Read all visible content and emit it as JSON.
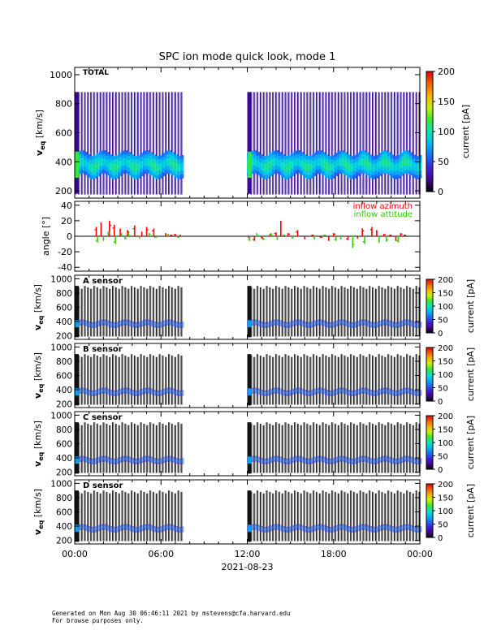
{
  "chart_data": {
    "type": "heatmap",
    "title": "SPC ion mode quick look, mode 1",
    "date_label": "2021-08-23",
    "x_ticks": [
      "00:00",
      "06:00",
      "12:00",
      "18:00",
      "00:00"
    ],
    "panels": [
      {
        "label": "TOTAL",
        "ylabel_main": "v",
        "ylabel_sub": "eq",
        "ylabel_unit": "[km/s]",
        "y_range": [
          150,
          1050
        ],
        "y_ticks": [
          200,
          400,
          600,
          800,
          1000
        ],
        "colorbar_label": "current [pA]",
        "colorbar_range": [
          0,
          200
        ],
        "colorbar_ticks": [
          0,
          50,
          100,
          150,
          200
        ],
        "colormap": "rainbow"
      },
      {
        "label": "A sensor",
        "ylabel_main": "v",
        "ylabel_sub": "eq",
        "ylabel_unit": "[km/s]",
        "y_range": [
          150,
          1050
        ],
        "y_ticks": [
          200,
          400,
          600,
          800,
          1000
        ],
        "colorbar_label": "current [pA]",
        "colorbar_range": [
          0,
          200
        ],
        "colorbar_ticks": [
          0,
          50,
          100,
          150,
          200
        ],
        "colormap": "rainbow"
      },
      {
        "label": "B sensor",
        "ylabel_main": "v",
        "ylabel_sub": "eq",
        "ylabel_unit": "[km/s]",
        "y_range": [
          150,
          1050
        ],
        "y_ticks": [
          200,
          400,
          600,
          800,
          1000
        ],
        "colorbar_label": "current [pA]",
        "colorbar_range": [
          0,
          200
        ],
        "colorbar_ticks": [
          0,
          50,
          100,
          150,
          200
        ],
        "colormap": "rainbow"
      },
      {
        "label": "C sensor",
        "ylabel_main": "v",
        "ylabel_sub": "eq",
        "ylabel_unit": "[km/s]",
        "y_range": [
          150,
          1050
        ],
        "y_ticks": [
          200,
          400,
          600,
          800,
          1000
        ],
        "colorbar_label": "current [pA]",
        "colorbar_range": [
          0,
          200
        ],
        "colorbar_ticks": [
          0,
          50,
          100,
          150,
          200
        ],
        "colormap": "rainbow"
      },
      {
        "label": "D sensor",
        "ylabel_main": "v",
        "ylabel_sub": "eq",
        "ylabel_unit": "[km/s]",
        "y_range": [
          150,
          1050
        ],
        "y_ticks": [
          200,
          400,
          600,
          800,
          1000
        ],
        "colorbar_label": "current [pA]",
        "colorbar_range": [
          0,
          200
        ],
        "colorbar_ticks": [
          0,
          50,
          100,
          150,
          200
        ],
        "colormap": "rainbow"
      }
    ],
    "angle_panel": {
      "ylabel": "angle [°]",
      "y_range": [
        -45,
        45
      ],
      "y_ticks": [
        -40,
        -20,
        0,
        20,
        40
      ],
      "series": [
        {
          "name": "inflow azimuth",
          "color": "#ff0000",
          "points": [
            [
              "01:30",
              12
            ],
            [
              "01:50",
              18
            ],
            [
              "02:25",
              20
            ],
            [
              "02:45",
              15
            ],
            [
              "03:10",
              10
            ],
            [
              "03:40",
              8
            ],
            [
              "04:10",
              14
            ],
            [
              "04:40",
              6
            ],
            [
              "05:00",
              12
            ],
            [
              "05:30",
              10
            ],
            [
              "06:20",
              4
            ],
            [
              "06:40",
              2
            ],
            [
              "07:00",
              3
            ],
            [
              "07:20",
              2
            ],
            [
              "12:05",
              -2
            ],
            [
              "12:30",
              -6
            ],
            [
              "13:00",
              -3
            ],
            [
              "13:35",
              3
            ],
            [
              "14:00",
              5
            ],
            [
              "14:20",
              20
            ],
            [
              "14:50",
              4
            ],
            [
              "15:30",
              8
            ],
            [
              "16:00",
              -4
            ],
            [
              "16:30",
              2
            ],
            [
              "17:10",
              -2
            ],
            [
              "17:40",
              -6
            ],
            [
              "18:00",
              4
            ],
            [
              "19:00",
              -5
            ],
            [
              "19:40",
              -3
            ],
            [
              "20:00",
              10
            ],
            [
              "20:40",
              12
            ],
            [
              "21:00",
              8
            ],
            [
              "21:30",
              3
            ],
            [
              "22:00",
              2
            ],
            [
              "22:20",
              -6
            ],
            [
              "22:40",
              4
            ],
            [
              "23:00",
              2
            ]
          ]
        },
        {
          "name": "inflow attitude",
          "color": "#33cc00",
          "points": [
            [
              "01:35",
              -8
            ],
            [
              "02:00",
              -6
            ],
            [
              "02:20",
              6
            ],
            [
              "02:50",
              -10
            ],
            [
              "03:15",
              4
            ],
            [
              "03:30",
              -4
            ],
            [
              "03:45",
              5
            ],
            [
              "04:30",
              -3
            ],
            [
              "05:10",
              4
            ],
            [
              "05:40",
              -2
            ],
            [
              "06:30",
              3
            ],
            [
              "07:10",
              -2
            ],
            [
              "12:10",
              -6
            ],
            [
              "12:40",
              4
            ],
            [
              "13:05",
              -5
            ],
            [
              "13:40",
              4
            ],
            [
              "14:05",
              -5
            ],
            [
              "14:30",
              2
            ],
            [
              "15:10",
              -3
            ],
            [
              "16:40",
              -4
            ],
            [
              "17:20",
              2
            ],
            [
              "18:10",
              -6
            ],
            [
              "18:30",
              -4
            ],
            [
              "19:20",
              -15
            ],
            [
              "20:10",
              -10
            ],
            [
              "21:10",
              -8
            ],
            [
              "21:40",
              -7
            ],
            [
              "22:30",
              -8
            ]
          ]
        }
      ]
    },
    "data_coverage": {
      "segments": [
        [
          "00:00",
          "07:35"
        ],
        [
          "12:00",
          "23:55"
        ]
      ],
      "sweep_interval_minutes": 13,
      "core_velocity_kms": {
        "total": [
          300,
          460
        ],
        "sensors": [
          330,
          410
        ]
      }
    }
  },
  "footer": {
    "line1": "Generated on Mon Aug 30 06:46:11 2021 by mstevens@cfa.harvard.edu",
    "line2": "For browse purposes only."
  }
}
